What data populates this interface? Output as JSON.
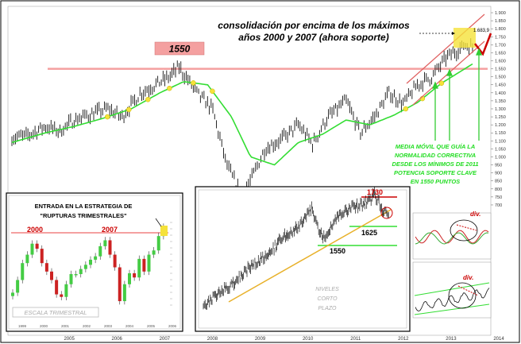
{
  "chart_data": {
    "type": "line",
    "title": "consolidación por encima de los máximos años 2000 y 2007 (ahora soporte)",
    "title_lines": [
      "consolidación por encima de los máximos",
      "años 2000 y 2007 (ahora soporte)"
    ],
    "annotations": {
      "level_box": "1550",
      "ma_note": [
        "MEDIA MÓVIL QUE GUÍA LA",
        "NORMALIDAD CORRECTIVA",
        "DESDE LOS MÍNIMOS DE 2011",
        "POTENCIA SOPORTE CLAVE",
        "EN 1550 PUNTOS"
      ],
      "price_tag": "1.683,9"
    },
    "x_ticks": [
      "2005",
      "2006",
      "2007",
      "2008",
      "2009",
      "2010",
      "2011",
      "2012",
      "2013",
      "2014"
    ],
    "y_ticks": [
      "1.900",
      "1.850",
      "1.800",
      "1.750",
      "1.700",
      "1.650",
      "1.600",
      "1.550",
      "1.500",
      "1.450",
      "1.400",
      "1.350",
      "1.300",
      "1.250",
      "1.200",
      "1.150",
      "1.100",
      "1.050",
      "1.000",
      "950",
      "900",
      "850",
      "800",
      "750",
      "700"
    ],
    "ylim": [
      680,
      1910
    ],
    "support_level": 1550,
    "series": [
      {
        "x": [
          2004.3,
          2004.6,
          2005.0,
          2005.3,
          2005.6,
          2006.0,
          2006.3,
          2006.6,
          2007.0,
          2007.3,
          2007.6,
          2007.8,
          2008.2,
          2008.5,
          2008.8,
          2009.1,
          2009.3,
          2009.6,
          2010.0,
          2010.3,
          2010.6,
          2010.9,
          2011.3,
          2011.6,
          2011.9,
          2012.2,
          2012.5,
          2012.8,
          2013.1,
          2013.4,
          2013.6,
          2013.8,
          2013.95
        ],
        "values": [
          1120,
          1130,
          1190,
          1160,
          1230,
          1270,
          1300,
          1250,
          1400,
          1450,
          1500,
          1560,
          1390,
          1300,
          950,
          760,
          850,
          1050,
          1120,
          1200,
          1080,
          1240,
          1350,
          1150,
          1250,
          1400,
          1330,
          1450,
          1500,
          1620,
          1660,
          1700,
          1683
        ]
      },
      {
        "x": [
          2004.3,
          2005.0,
          2005.6,
          2006.2,
          2006.8,
          2007.4,
          2007.9,
          2008.4,
          2008.9,
          2009.3,
          2009.8,
          2010.3,
          2010.8,
          2011.3,
          2011.8,
          2012.3,
          2012.8,
          2013.3,
          2013.95
        ],
        "values": [
          1090,
          1150,
          1190,
          1240,
          1300,
          1400,
          1470,
          1450,
          1250,
          1000,
          950,
          1090,
          1140,
          1230,
          1200,
          1260,
          1340,
          1460,
          1580
        ]
      }
    ],
    "insets": [
      {
        "title": [
          "ENTRADA EN LA ESTRATEGIA DE",
          "\"RUPTURAS TRIMESTRALES\""
        ],
        "scale_label": "ESCALA TRIMESTRAL",
        "peaks": [
          "2000",
          "2007"
        ],
        "x_ticks": [
          "1999",
          "2000",
          "2001",
          "2002",
          "2003",
          "2004",
          "2005",
          "2006",
          "2007",
          "2008",
          "2009",
          "2010",
          "2011",
          "2012",
          "2013",
          "2014"
        ]
      },
      {
        "title": [
          "NIVELES",
          "CORTO",
          "PLAZO"
        ],
        "levels": [
          "1730",
          "1625",
          "1550"
        ]
      },
      {
        "title": "div."
      },
      {
        "title": "div."
      }
    ]
  }
}
